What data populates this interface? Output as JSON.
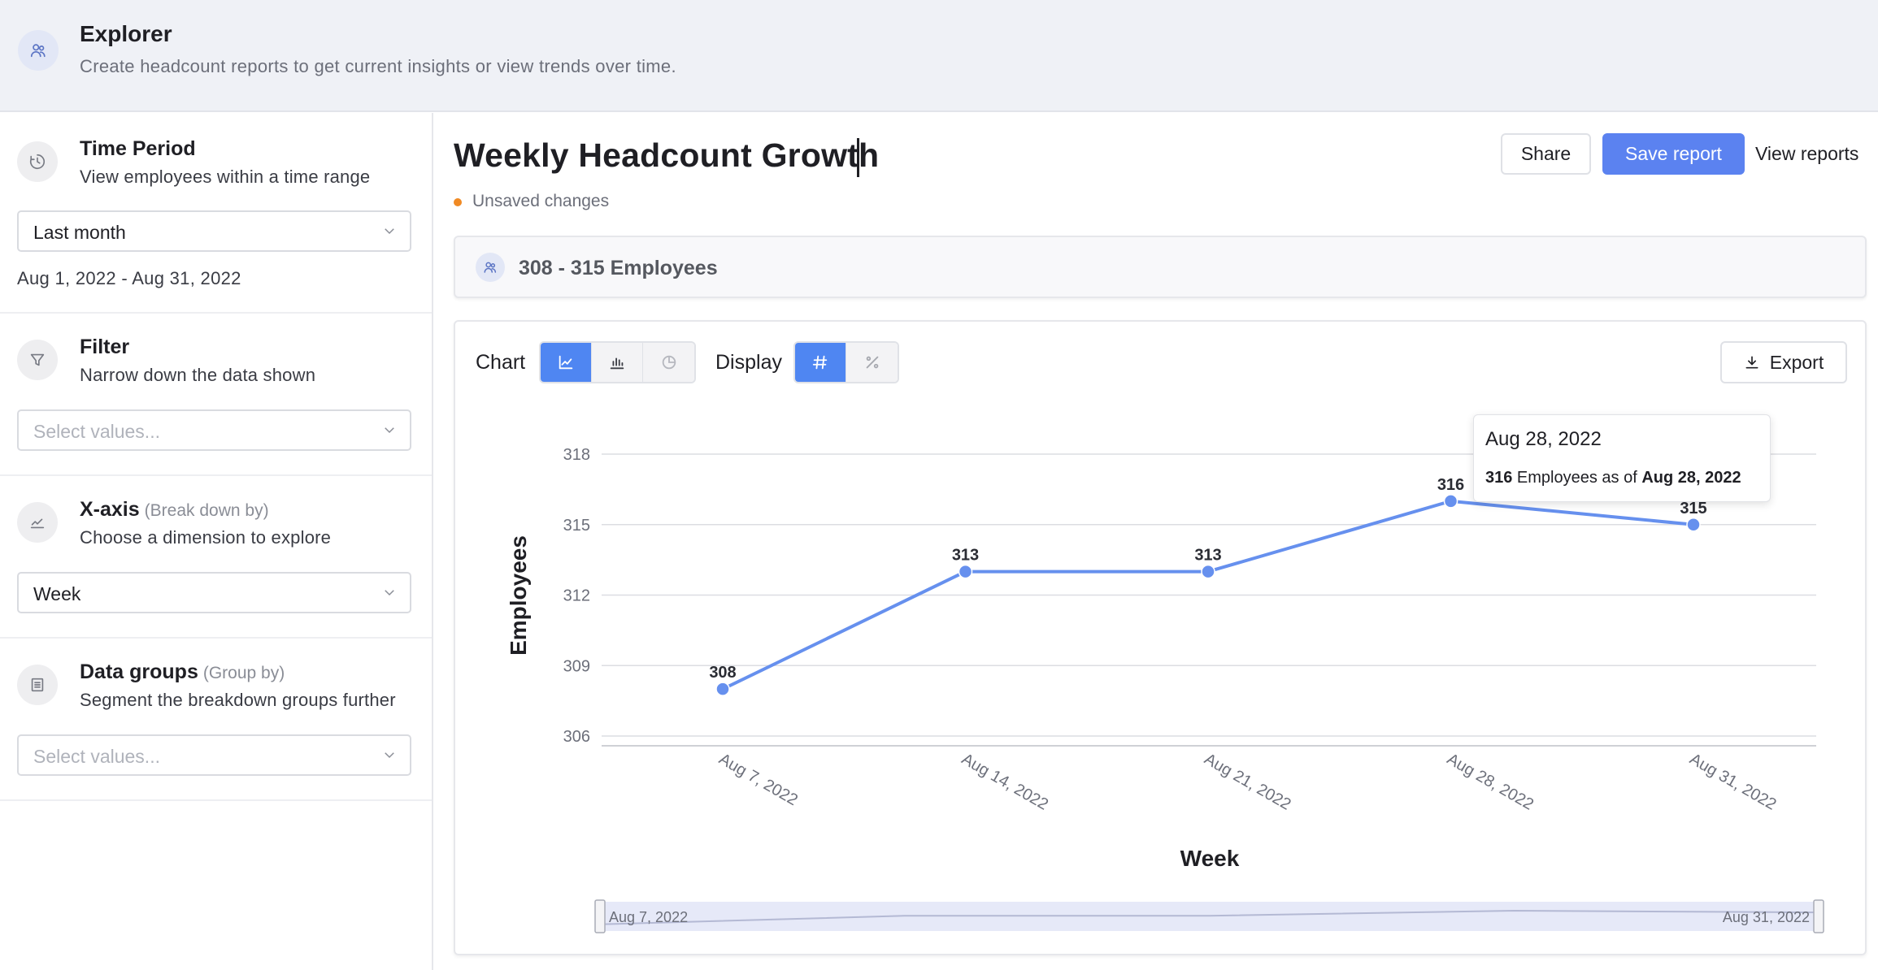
{
  "header": {
    "title": "Explorer",
    "subtitle": "Create headcount reports to get current insights or view trends over time."
  },
  "sidebar": {
    "time_period": {
      "title": "Time Period",
      "description": "View employees within a time range",
      "selected": "Last month",
      "range_text": "Aug 1, 2022 - Aug 31, 2022"
    },
    "filter": {
      "title": "Filter",
      "description": "Narrow down the data shown",
      "placeholder": "Select values..."
    },
    "x_axis": {
      "title": "X-axis",
      "title_note": "(Break down by)",
      "description": "Choose a dimension to explore",
      "selected": "Week"
    },
    "data_groups": {
      "title": "Data groups",
      "title_note": "(Group by)",
      "description": "Segment the breakdown groups further",
      "placeholder": "Select values..."
    }
  },
  "report": {
    "title": "Weekly Headcount Growth",
    "status": "Unsaved changes",
    "share_label": "Share",
    "save_label": "Save report",
    "view_label": "View reports",
    "summary": "308 - 315 Employees"
  },
  "chart_controls": {
    "chart_label": "Chart",
    "chart_types": [
      {
        "name": "line",
        "active": true
      },
      {
        "name": "bar",
        "active": false
      },
      {
        "name": "pie",
        "active": false
      }
    ],
    "display_label": "Display",
    "display_modes": [
      {
        "name": "number",
        "symbol": "#",
        "active": true
      },
      {
        "name": "percent",
        "symbol": "%",
        "active": false
      }
    ],
    "export_label": "Export"
  },
  "tooltip": {
    "date": "Aug 28, 2022",
    "value": "316",
    "mid_text": " Employees as of ",
    "as_of": "Aug 28, 2022"
  },
  "range_slider": {
    "start": "Aug 7, 2022",
    "end": "Aug 31, 2022"
  },
  "colors": {
    "accent": "#5b82f0",
    "line": "#6690ee",
    "status_dot": "#f08a24"
  },
  "chart_data": {
    "type": "line",
    "categories": [
      "Aug 7, 2022",
      "Aug 14, 2022",
      "Aug 21, 2022",
      "Aug 28, 2022",
      "Aug 31, 2022"
    ],
    "values": [
      308,
      313,
      313,
      316,
      315
    ],
    "data_labels": [
      "308",
      "313",
      "313",
      "316",
      "315"
    ],
    "xlabel": "Week",
    "ylabel": "Employees",
    "yticks": [
      "306",
      "309",
      "312",
      "315",
      "318"
    ],
    "ylim": [
      306,
      318
    ],
    "grid": true,
    "legend": "none"
  }
}
